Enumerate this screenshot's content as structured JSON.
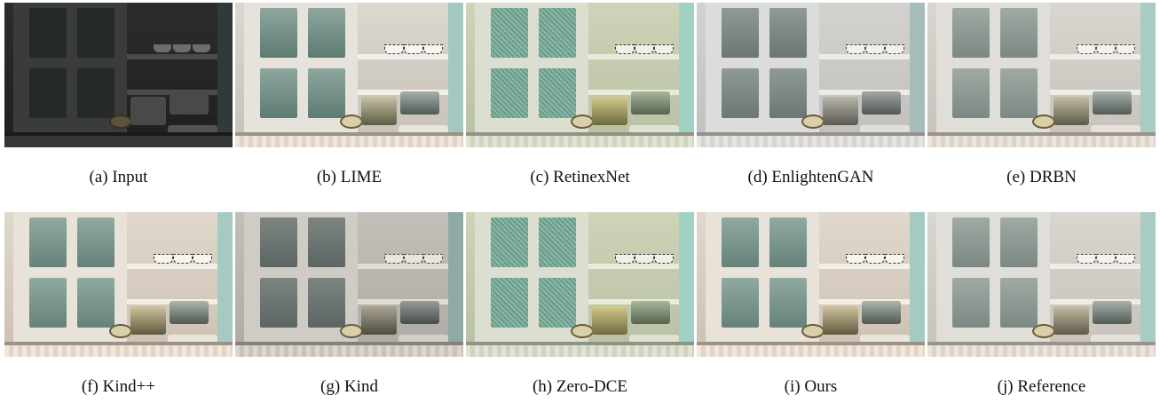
{
  "figure": {
    "panels": [
      {
        "caption": "(a) Input",
        "variant": "dark"
      },
      {
        "caption": "(b) LIME",
        "variant": "bright"
      },
      {
        "caption": "(c) RetinexNet",
        "variant": "noisy"
      },
      {
        "caption": "(d) EnlightenGAN",
        "variant": "gray"
      },
      {
        "caption": "(e) DRBN",
        "variant": "soft"
      },
      {
        "caption": "(f) Kind++",
        "variant": "warm"
      },
      {
        "caption": "(g) Kind",
        "variant": "dim"
      },
      {
        "caption": "(h) Zero-DCE",
        "variant": "noisy"
      },
      {
        "caption": "(i) Ours",
        "variant": "warm"
      },
      {
        "caption": "(j) Reference",
        "variant": "soft"
      }
    ]
  }
}
